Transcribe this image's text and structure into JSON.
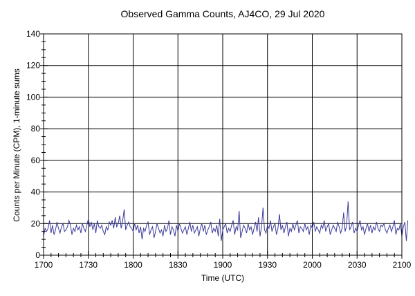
{
  "chart_data": {
    "type": "line",
    "title": "Observed Gamma Counts, AJ4CO, 29 Jul 2020",
    "xlabel": "Time (UTC)",
    "ylabel": "Counts per Minute (CPM), 1-minute sums",
    "x_ticks": [
      "1700",
      "1730",
      "1800",
      "1830",
      "1900",
      "1930",
      "2000",
      "2030",
      "2100"
    ],
    "y_ticks": [
      "0",
      "20",
      "40",
      "60",
      "80",
      "100",
      "120",
      "140"
    ],
    "xlim_minutes": [
      0,
      240
    ],
    "ylim": [
      0,
      140
    ],
    "grid": true,
    "series": [
      {
        "color": "#3a3a9a",
        "values": [
          12,
          17,
          15,
          17,
          22,
          14,
          19,
          13,
          16,
          21,
          17,
          14,
          18,
          20,
          15,
          16,
          18,
          22,
          19,
          13,
          17,
          15,
          19,
          16,
          18,
          14,
          20,
          17,
          15,
          19,
          23,
          18,
          21,
          16,
          20,
          14,
          22,
          18,
          17,
          19,
          15,
          13,
          18,
          16,
          21,
          19,
          22,
          17,
          24,
          18,
          20,
          25,
          17,
          22,
          29,
          16,
          19,
          21,
          18,
          17,
          15,
          20,
          16,
          19,
          14,
          18,
          10,
          17,
          15,
          19,
          21,
          13,
          16,
          18,
          11,
          15,
          20,
          17,
          14,
          16,
          12,
          19,
          15,
          17,
          22,
          13,
          18,
          16,
          12,
          19,
          15,
          20,
          17,
          14,
          16,
          18,
          13,
          17,
          21,
          15,
          19,
          14,
          16,
          18,
          12,
          17,
          20,
          15,
          19,
          13,
          16,
          18,
          21,
          14,
          17,
          15,
          19,
          12,
          23,
          9,
          16,
          18,
          20,
          14,
          17,
          15,
          19,
          22,
          13,
          18,
          16,
          28,
          11,
          15,
          19,
          17,
          14,
          20,
          16,
          18,
          13,
          17,
          21,
          15,
          24,
          12,
          18,
          30,
          16,
          14,
          19,
          17,
          22,
          15,
          18,
          20,
          13,
          17,
          26,
          16,
          19,
          14,
          18,
          21,
          12,
          17,
          15,
          20,
          16,
          19,
          22,
          14,
          18,
          17,
          15,
          20,
          16,
          18,
          13,
          19,
          17,
          21,
          15,
          18,
          16,
          14,
          19,
          17,
          22,
          15,
          18,
          20,
          13,
          16,
          19,
          17,
          15,
          21,
          18,
          14,
          17,
          27,
          15,
          19,
          34,
          16,
          18,
          21,
          14,
          17,
          15,
          19,
          22,
          16,
          18,
          13,
          17,
          20,
          15,
          19,
          14,
          18,
          16,
          21,
          17,
          15,
          19,
          18,
          20,
          16,
          14,
          17,
          19,
          15,
          18,
          22,
          13,
          17,
          16,
          20,
          12,
          18,
          21,
          9,
          22
        ]
      }
    ]
  }
}
